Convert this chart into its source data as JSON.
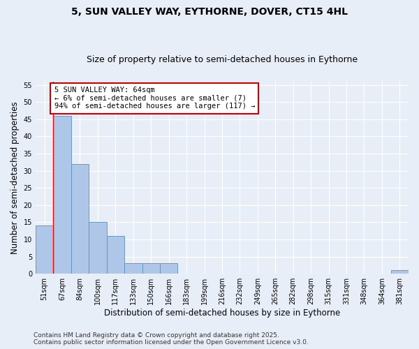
{
  "title_line1": "5, SUN VALLEY WAY, EYTHORNE, DOVER, CT15 4HL",
  "title_line2": "Size of property relative to semi-detached houses in Eythorne",
  "xlabel": "Distribution of semi-detached houses by size in Eythorne",
  "ylabel": "Number of semi-detached properties",
  "categories": [
    "51sqm",
    "67sqm",
    "84sqm",
    "100sqm",
    "117sqm",
    "133sqm",
    "150sqm",
    "166sqm",
    "183sqm",
    "199sqm",
    "216sqm",
    "232sqm",
    "249sqm",
    "265sqm",
    "282sqm",
    "298sqm",
    "315sqm",
    "331sqm",
    "348sqm",
    "364sqm",
    "381sqm"
  ],
  "values": [
    14,
    46,
    32,
    15,
    11,
    3,
    3,
    3,
    0,
    0,
    0,
    0,
    0,
    0,
    0,
    0,
    0,
    0,
    0,
    0,
    1
  ],
  "bar_color": "#aec6e8",
  "bar_edge_color": "#5a8fc0",
  "annotation_text": "5 SUN VALLEY WAY: 64sqm\n← 6% of semi-detached houses are smaller (7)\n94% of semi-detached houses are larger (117) →",
  "annotation_box_color": "#ffffff",
  "annotation_box_edge_color": "#cc0000",
  "ylim": [
    0,
    56
  ],
  "yticks": [
    0,
    5,
    10,
    15,
    20,
    25,
    30,
    35,
    40,
    45,
    50,
    55
  ],
  "footer_line1": "Contains HM Land Registry data © Crown copyright and database right 2025.",
  "footer_line2": "Contains public sector information licensed under the Open Government Licence v3.0.",
  "background_color": "#e8eef7",
  "grid_color": "#ffffff",
  "title_fontsize": 10,
  "subtitle_fontsize": 9,
  "axis_label_fontsize": 8.5,
  "tick_fontsize": 7,
  "annotation_fontsize": 7.5,
  "footer_fontsize": 6.5
}
